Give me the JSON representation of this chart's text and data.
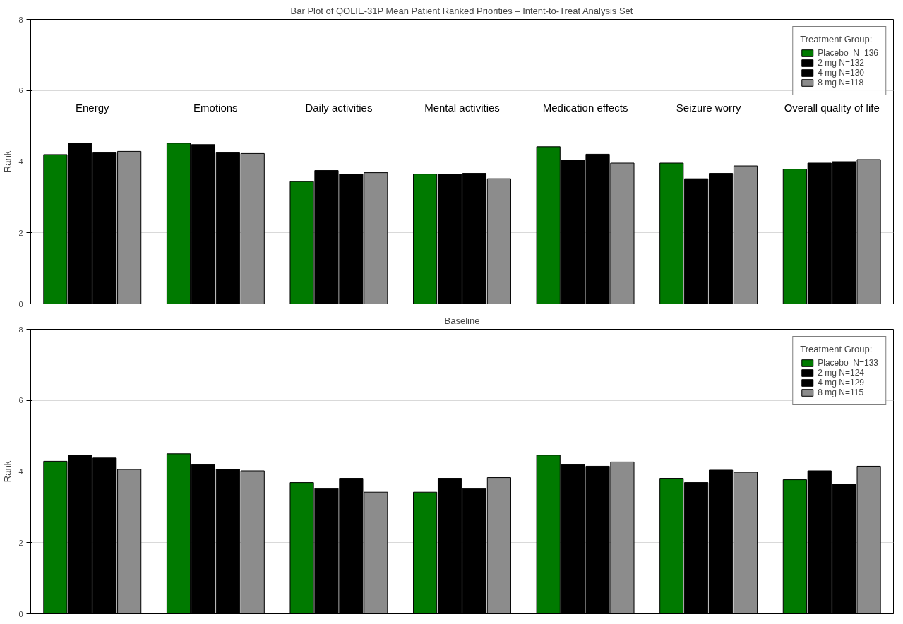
{
  "chart_data": [
    {
      "type": "bar",
      "title": "Bar Plot of QOLIE-31P Mean Patient Ranked Priorities – Intent-to-Treat Analysis Set",
      "ylabel": "Rank",
      "legend_title": "Treatment Group:",
      "legend": "top right",
      "grid": "y",
      "tick_labels": "y",
      "ylim": [
        0,
        8
      ],
      "yticks": [
        0,
        2,
        4,
        6,
        8
      ],
      "categories": [
        "Energy",
        "Emotions",
        "Daily activities",
        "Mental activities",
        "Medication effects",
        "Seizure worry",
        "Overall quality of life"
      ],
      "series": [
        {
          "name": "Placebo  N=136",
          "color": "#007a00",
          "values": [
            4.2,
            4.52,
            3.44,
            3.65,
            4.42,
            3.96,
            3.79
          ]
        },
        {
          "name": "2 mg N=132",
          "color": "#000000",
          "values": [
            4.52,
            4.48,
            3.75,
            3.65,
            4.04,
            3.52,
            3.96
          ]
        },
        {
          "name": "4 mg N=130",
          "color": "#000000",
          "values": [
            4.25,
            4.25,
            3.65,
            3.67,
            4.21,
            3.67,
            4.0
          ]
        },
        {
          "name": "8 mg N=118",
          "color": "#8c8c8c",
          "values": [
            4.29,
            4.23,
            3.69,
            3.52,
            3.96,
            3.88,
            4.06
          ]
        }
      ]
    },
    {
      "type": "bar",
      "title": "Baseline",
      "ylabel": "Rank",
      "legend_title": "Treatment Group:",
      "legend": "top right",
      "grid": "y",
      "tick_labels": "y",
      "ylim": [
        0,
        8
      ],
      "yticks": [
        0,
        2,
        4,
        6,
        8
      ],
      "categories": [
        null,
        null,
        null,
        null,
        null,
        null,
        null
      ],
      "series": [
        {
          "name": "Placebo  N=133",
          "color": "#007a00",
          "values": [
            4.29,
            4.5,
            3.69,
            3.42,
            4.46,
            3.81,
            3.77
          ]
        },
        {
          "name": "2 mg N=124",
          "color": "#000000",
          "values": [
            4.46,
            4.19,
            3.52,
            3.81,
            4.19,
            3.69,
            4.02
          ]
        },
        {
          "name": "4 mg N=129",
          "color": "#000000",
          "values": [
            4.38,
            4.06,
            3.81,
            3.52,
            4.15,
            4.04,
            3.65
          ]
        },
        {
          "name": "8 mg N=115",
          "color": "#8c8c8c",
          "values": [
            4.06,
            4.02,
            3.42,
            3.83,
            4.27,
            3.98,
            4.15
          ]
        }
      ]
    }
  ]
}
